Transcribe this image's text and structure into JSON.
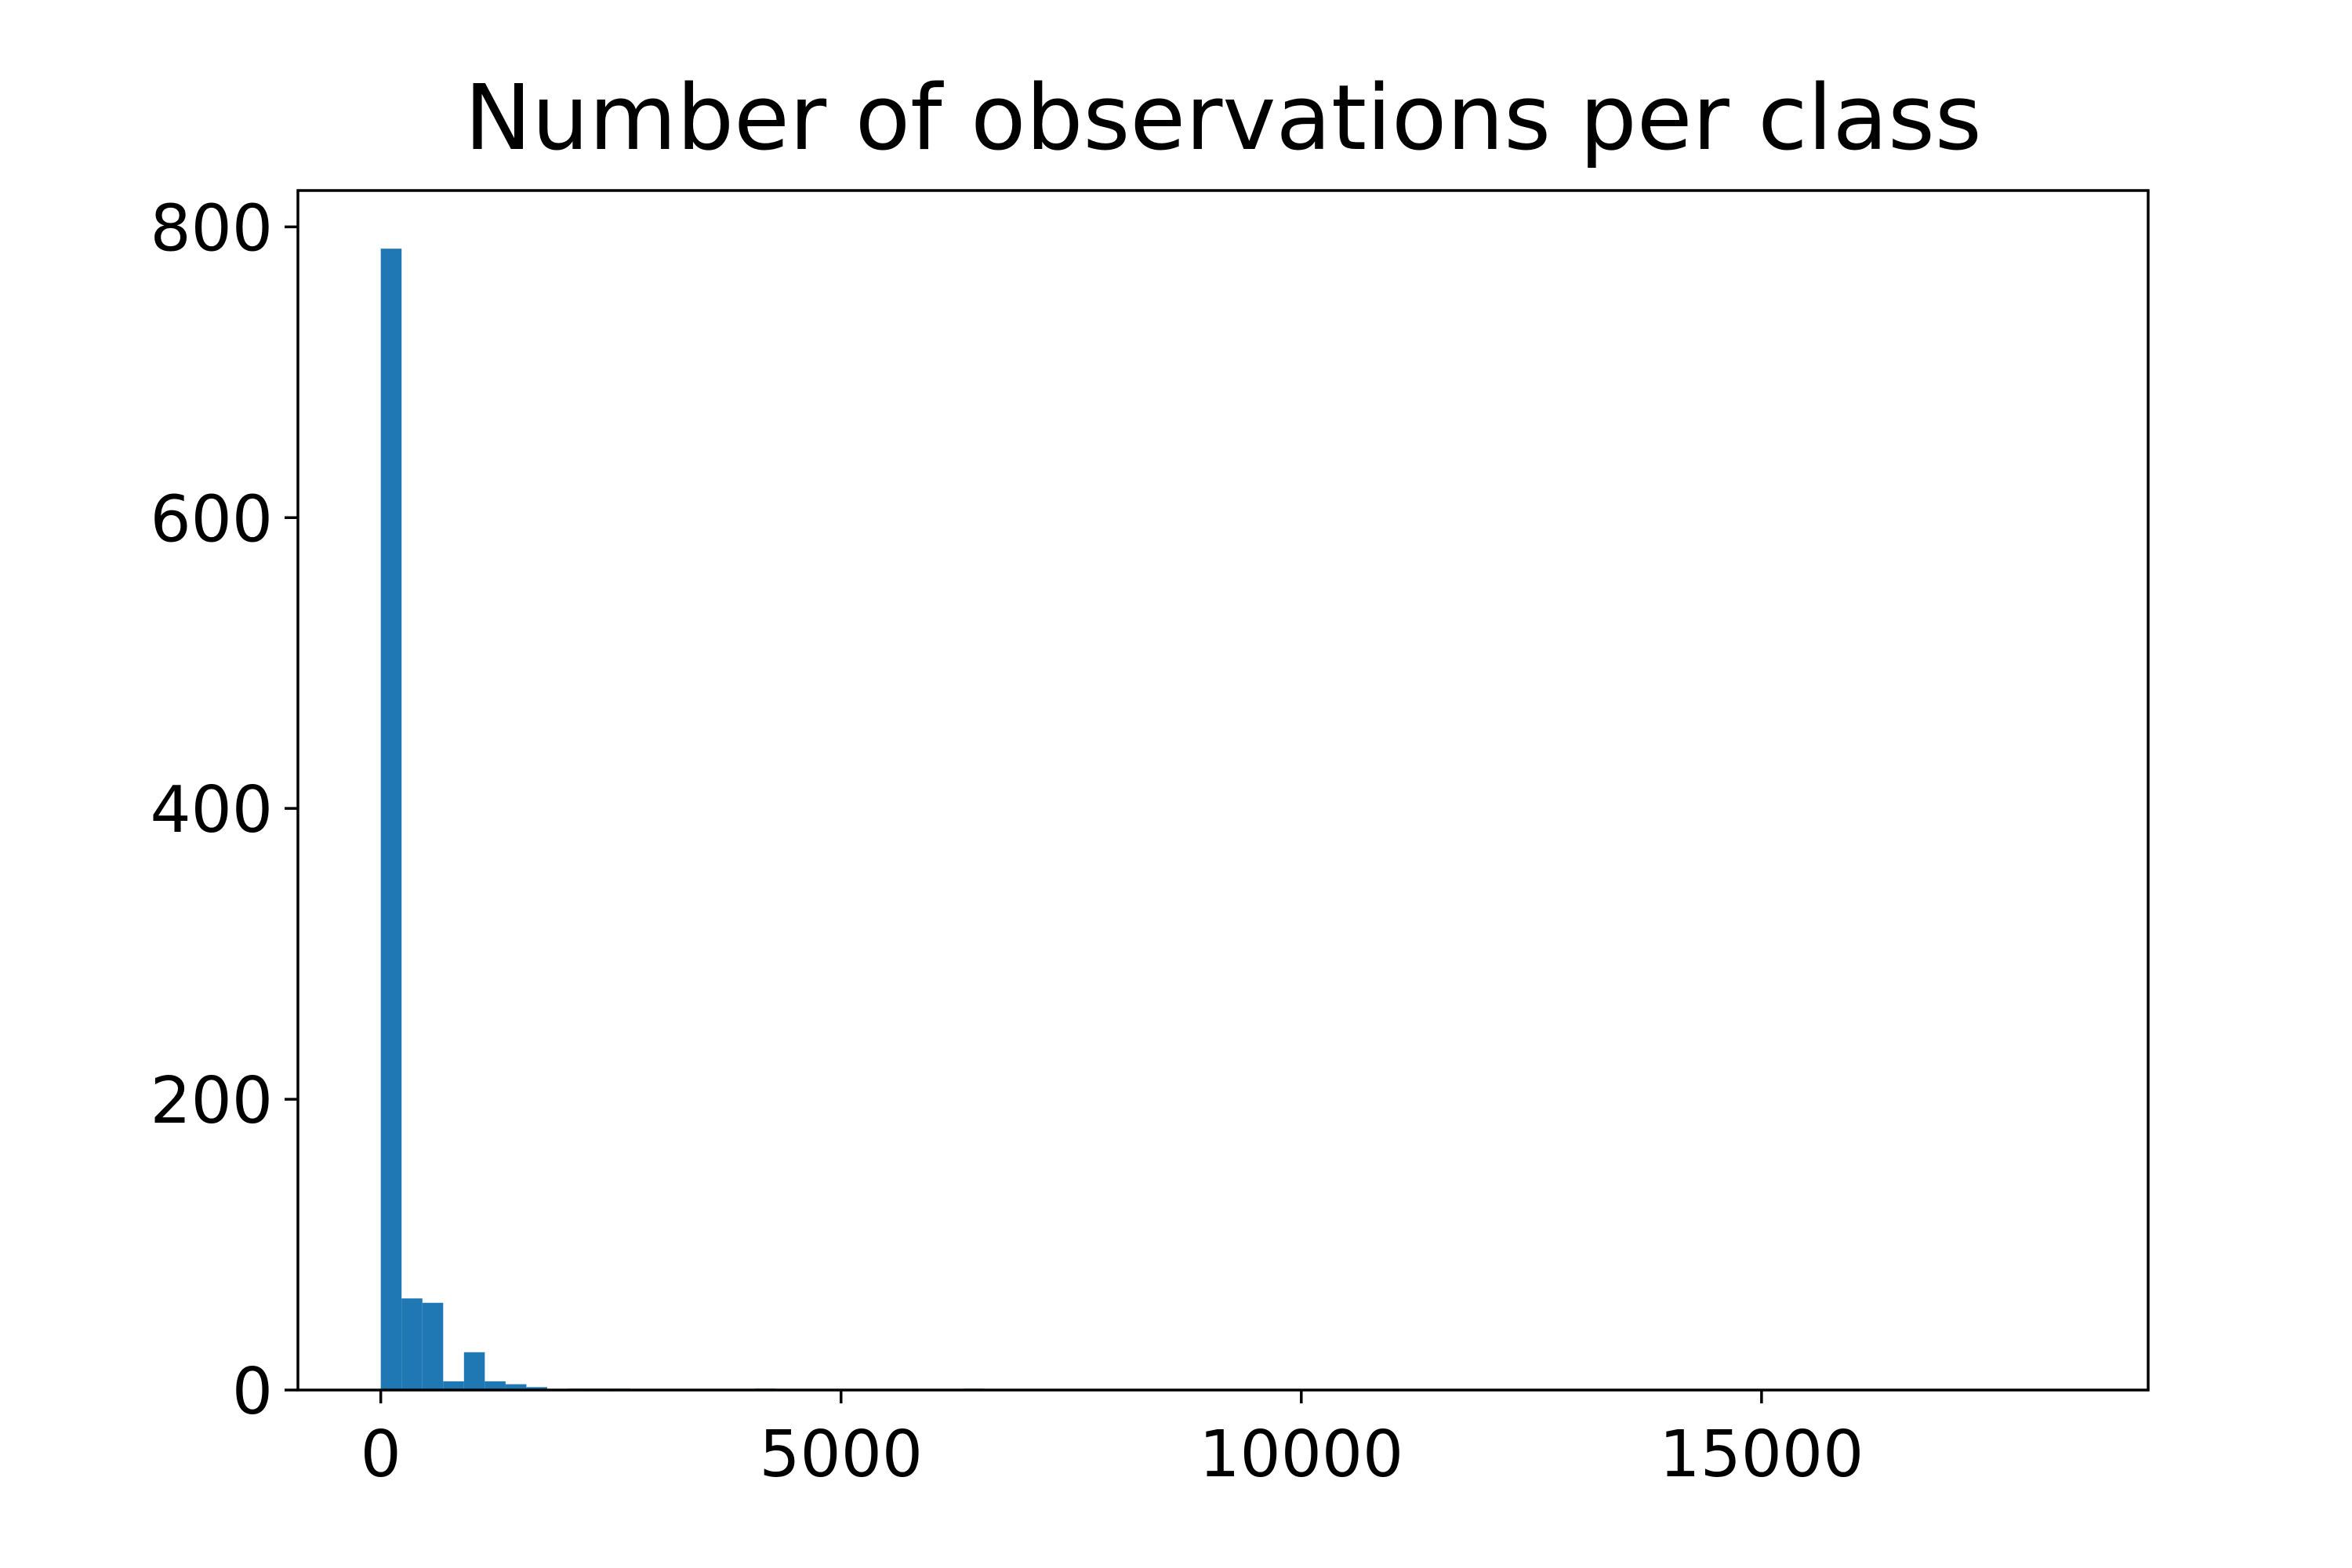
{
  "chart_data": {
    "type": "bar",
    "title": "Number of observations per class",
    "xlabel": "",
    "ylabel": "",
    "xlim": [
      -900,
      19200
    ],
    "ylim": [
      0,
      825
    ],
    "grid": false,
    "legend": "none",
    "bar_color": "#1f77b4",
    "x_ticks": [
      0,
      5000,
      10000,
      15000
    ],
    "y_ticks": [
      0,
      200,
      400,
      600,
      800
    ],
    "bin_width": 226,
    "bins": [
      {
        "x0": 0,
        "x1": 226,
        "count": 785
      },
      {
        "x0": 226,
        "x1": 452,
        "count": 63
      },
      {
        "x0": 452,
        "x1": 678,
        "count": 60
      },
      {
        "x0": 678,
        "x1": 904,
        "count": 6
      },
      {
        "x0": 904,
        "x1": 1130,
        "count": 26
      },
      {
        "x0": 1130,
        "x1": 1356,
        "count": 6
      },
      {
        "x0": 1356,
        "x1": 1582,
        "count": 4
      },
      {
        "x0": 1582,
        "x1": 1808,
        "count": 2
      },
      {
        "x0": 1808,
        "x1": 2034,
        "count": 0
      },
      {
        "x0": 2034,
        "x1": 2260,
        "count": 1
      },
      {
        "x0": 2260,
        "x1": 2486,
        "count": 1
      },
      {
        "x0": 2486,
        "x1": 2712,
        "count": 1
      },
      {
        "x0": 4068,
        "x1": 4294,
        "count": 1
      },
      {
        "x0": 6328,
        "x1": 6554,
        "count": 1
      }
    ]
  }
}
